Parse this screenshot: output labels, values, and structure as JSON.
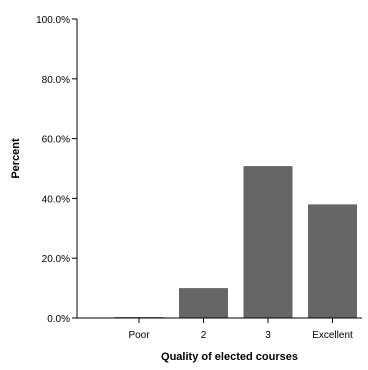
{
  "chart_data": {
    "type": "bar",
    "categories": [
      "Poor",
      "2",
      "3",
      "Excellent"
    ],
    "values": [
      0.3,
      10.0,
      50.8,
      38.0
    ],
    "xlabel": "Quality of elected courses",
    "ylabel": "Percent",
    "ylim": [
      0,
      100
    ],
    "yticks": [
      0,
      20,
      40,
      60,
      80,
      100
    ],
    "ytick_labels": [
      "0.0%",
      "20.0%",
      "40.0%",
      "60.0%",
      "80.0%",
      "100.0%"
    ],
    "grid": false,
    "legend": "none",
    "bar_color": "#666666"
  }
}
